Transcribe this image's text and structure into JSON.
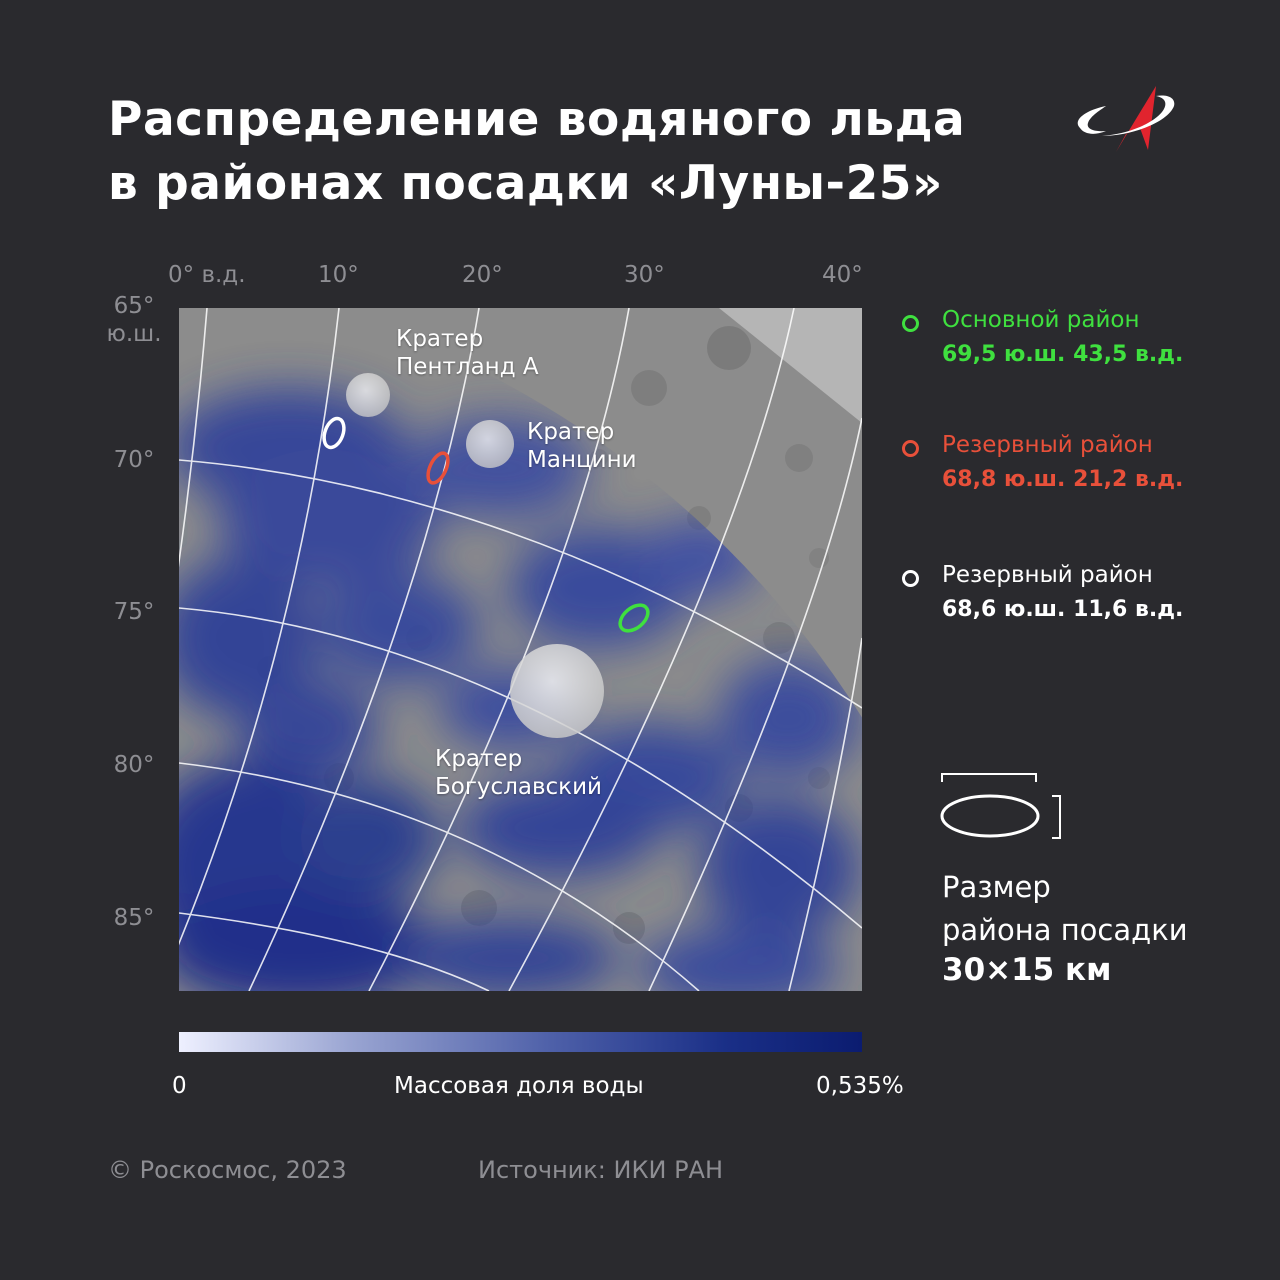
{
  "title": {
    "line1": "Распределение водяного льда",
    "line2": "в районах посадки «Луны-25»"
  },
  "logo_icon": "roscosmos-logo-icon",
  "axes": {
    "longitude": [
      "0° в.д.",
      "10°",
      "20°",
      "30°",
      "40°"
    ],
    "latitude": {
      "first_value": "65°",
      "first_unit": "ю.ш.",
      "others": [
        "70°",
        "75°",
        "80°",
        "85°"
      ]
    }
  },
  "map": {
    "craters": {
      "pentland_line1": "Кратер",
      "pentland_line2": "Пентланд А",
      "mancini_line1": "Кратер",
      "mancini_line2": "Манцини",
      "boguslavsky_line1": "Кратер",
      "boguslavsky_line2": "Богуславский"
    }
  },
  "legend": {
    "primary": {
      "name": "Основной район",
      "coords": "69,5 ю.ш. 43,5 в.д.",
      "color": "#3fe03f"
    },
    "reserve1": {
      "name": "Резервный район",
      "coords": "68,8 ю.ш. 21,2 в.д.",
      "color": "#e8503a"
    },
    "reserve2": {
      "name": "Резервный район",
      "coords": "68,6 ю.ш. 11,6 в.д.",
      "color": "#ffffff"
    }
  },
  "landing_size": {
    "line1": "Размер",
    "line2": "района посадки",
    "value": "30×15 км"
  },
  "scale": {
    "min": "0",
    "label": "Массовая доля воды",
    "max": "0,535%",
    "color_min": "#eef0ff",
    "color_max": "#0b1c70"
  },
  "footer": {
    "copyright": "© Роскосмос, 2023",
    "source": "Источник: ИКИ РАН"
  }
}
